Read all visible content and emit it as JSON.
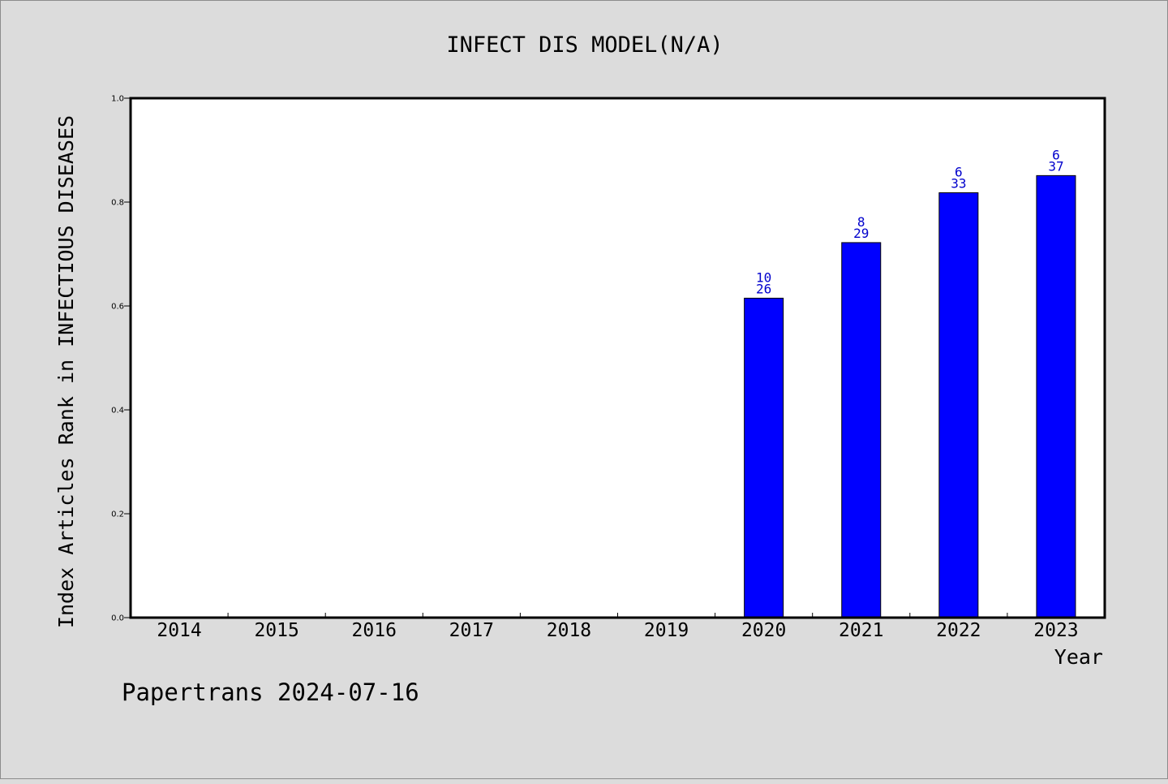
{
  "chart_data": {
    "type": "bar",
    "title": "INFECT DIS MODEL(N/A)",
    "xlabel": "Year",
    "ylabel": "Index Articles Rank in INFECTIOUS DISEASES",
    "ylim": [
      0.0,
      1.0
    ],
    "yticks": [
      "0.0",
      "0.2",
      "0.4",
      "0.6",
      "0.8",
      "1.0"
    ],
    "categories": [
      "2014",
      "2015",
      "2016",
      "2017",
      "2018",
      "2019",
      "2020",
      "2021",
      "2022",
      "2023"
    ],
    "values": [
      null,
      null,
      null,
      null,
      null,
      null,
      0.615,
      0.722,
      0.818,
      0.851
    ],
    "labels_top": [
      "",
      "",
      "",
      "",
      "",
      "",
      "10",
      "8",
      "6",
      "6"
    ],
    "labels_bottom": [
      "",
      "",
      "",
      "",
      "",
      "",
      "26",
      "29",
      "33",
      "37"
    ],
    "bar_color": "#0000ff",
    "label_color": "#0000cc",
    "grid": false
  },
  "footer": {
    "text": "Papertrans 2024-07-16"
  },
  "colors": {
    "background": "#dcdcdc",
    "plot_background": "#ffffff"
  }
}
